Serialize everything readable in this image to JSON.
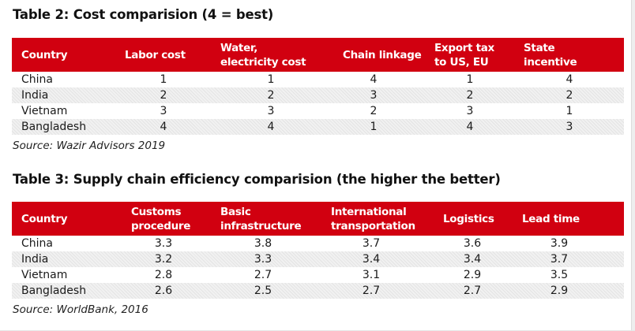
{
  "table2": {
    "title": "Table 2: Cost comparision (4 = best)",
    "headers": [
      "Country",
      "Labor cost",
      "Water,\nelectricity cost",
      "Chain linkage",
      "Export tax\nto US, EU",
      "State\nincentive"
    ],
    "rows": [
      {
        "country": "China",
        "values": [
          "1",
          "1",
          "4",
          "1",
          "4"
        ]
      },
      {
        "country": "India",
        "values": [
          "2",
          "2",
          "3",
          "2",
          "2"
        ]
      },
      {
        "country": "Vietnam",
        "values": [
          "3",
          "3",
          "2",
          "3",
          "1"
        ]
      },
      {
        "country": "Bangladesh",
        "values": [
          "4",
          "4",
          "1",
          "4",
          "3"
        ]
      }
    ],
    "source": "Source: Wazir Advisors 2019"
  },
  "table3": {
    "title": "Table 3: Supply chain efficiency comparision (the higher the better)",
    "headers": [
      "Country",
      "Customs\nprocedure",
      "Basic\ninfrastructure",
      "International\ntransportation",
      "Logistics",
      "Lead time"
    ],
    "rows": [
      {
        "country": "China",
        "values": [
          "3.3",
          "3.8",
          "3.7",
          "3.6",
          "3.9"
        ]
      },
      {
        "country": "India",
        "values": [
          "3.2",
          "3.3",
          "3.4",
          "3.4",
          "3.7"
        ]
      },
      {
        "country": "Vietnam",
        "values": [
          "2.8",
          "2.7",
          "3.1",
          "2.9",
          "3.5"
        ]
      },
      {
        "country": "Bangladesh",
        "values": [
          "2.6",
          "2.5",
          "2.7",
          "2.7",
          "2.9"
        ]
      }
    ],
    "source": "Source: WorldBank, 2016"
  },
  "colors": {
    "header_bg": "#d10010",
    "header_text": "#ffffff",
    "alt_row": "#ebebeb"
  }
}
